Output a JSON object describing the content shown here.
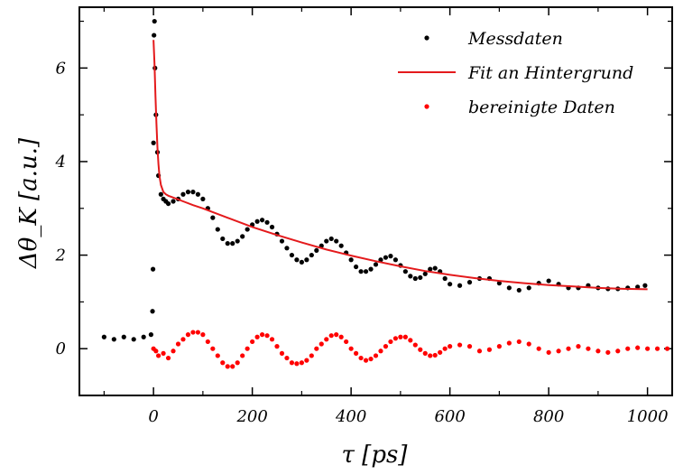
{
  "chart_data": {
    "type": "scatter",
    "xlabel": "τ [ps]",
    "ylabel": "Δθ_K [a.u.]",
    "xlim": [
      -150,
      1050
    ],
    "ylim": [
      -1.0,
      7.3
    ],
    "x_ticks": [
      0,
      200,
      400,
      600,
      800,
      1000
    ],
    "y_ticks": [
      0,
      2,
      4,
      6
    ],
    "grid": false,
    "legend_position": "top-right",
    "series": [
      {
        "name": "Messdaten",
        "kind": "scatter",
        "color": "#000000",
        "x": [
          -100,
          -80,
          -60,
          -40,
          -20,
          -5,
          -2,
          -1,
          0,
          1,
          2,
          3,
          5,
          8,
          10,
          15,
          20,
          25,
          30,
          40,
          50,
          60,
          70,
          80,
          90,
          100,
          110,
          120,
          130,
          140,
          150,
          160,
          170,
          180,
          190,
          200,
          210,
          220,
          230,
          240,
          250,
          260,
          270,
          280,
          290,
          300,
          310,
          320,
          330,
          340,
          350,
          360,
          370,
          380,
          390,
          400,
          410,
          420,
          430,
          440,
          450,
          460,
          470,
          480,
          490,
          500,
          510,
          520,
          530,
          540,
          550,
          560,
          570,
          580,
          590,
          600,
          620,
          640,
          660,
          680,
          700,
          720,
          740,
          760,
          780,
          800,
          820,
          840,
          860,
          880,
          900,
          920,
          940,
          960,
          980,
          995
        ],
        "y": [
          0.25,
          0.2,
          0.25,
          0.2,
          0.25,
          0.3,
          0.8,
          1.7,
          4.4,
          6.7,
          7.0,
          6.0,
          5.0,
          4.2,
          3.7,
          3.3,
          3.2,
          3.15,
          3.1,
          3.15,
          3.2,
          3.3,
          3.35,
          3.35,
          3.3,
          3.2,
          3.0,
          2.8,
          2.55,
          2.35,
          2.25,
          2.25,
          2.3,
          2.4,
          2.55,
          2.65,
          2.72,
          2.75,
          2.7,
          2.6,
          2.45,
          2.3,
          2.15,
          2.0,
          1.9,
          1.85,
          1.9,
          2.0,
          2.1,
          2.2,
          2.3,
          2.35,
          2.3,
          2.2,
          2.05,
          1.9,
          1.75,
          1.65,
          1.65,
          1.7,
          1.8,
          1.9,
          1.95,
          1.98,
          1.9,
          1.78,
          1.65,
          1.55,
          1.5,
          1.52,
          1.6,
          1.7,
          1.72,
          1.65,
          1.5,
          1.38,
          1.35,
          1.42,
          1.5,
          1.5,
          1.4,
          1.3,
          1.25,
          1.3,
          1.4,
          1.45,
          1.38,
          1.3,
          1.3,
          1.35,
          1.3,
          1.28,
          1.28,
          1.3,
          1.32,
          1.35
        ]
      },
      {
        "name": "Fit an Hintergrund",
        "kind": "line",
        "color": "#e41a1c",
        "x": [
          0,
          2,
          4,
          6,
          8,
          10,
          12,
          15,
          20,
          25,
          30,
          40,
          60,
          80,
          100,
          150,
          200,
          250,
          300,
          350,
          400,
          450,
          500,
          550,
          600,
          650,
          700,
          750,
          800,
          850,
          900,
          950,
          1000
        ],
        "y": [
          6.6,
          6.1,
          5.4,
          4.8,
          4.3,
          3.95,
          3.7,
          3.5,
          3.35,
          3.3,
          3.27,
          3.23,
          3.15,
          3.07,
          3.0,
          2.8,
          2.6,
          2.43,
          2.27,
          2.12,
          1.99,
          1.87,
          1.76,
          1.66,
          1.58,
          1.51,
          1.45,
          1.4,
          1.36,
          1.33,
          1.3,
          1.28,
          1.27
        ]
      },
      {
        "name": "bereinigte Daten",
        "kind": "scatter",
        "color": "#ff0000",
        "x": [
          0,
          5,
          10,
          20,
          30,
          40,
          50,
          60,
          70,
          80,
          90,
          100,
          110,
          120,
          130,
          140,
          150,
          160,
          170,
          180,
          190,
          200,
          210,
          220,
          230,
          240,
          250,
          260,
          270,
          280,
          290,
          300,
          310,
          320,
          330,
          340,
          350,
          360,
          370,
          380,
          390,
          400,
          410,
          420,
          430,
          440,
          450,
          460,
          470,
          480,
          490,
          500,
          510,
          520,
          530,
          540,
          550,
          560,
          570,
          580,
          590,
          600,
          620,
          640,
          660,
          680,
          700,
          720,
          740,
          760,
          780,
          800,
          820,
          840,
          860,
          880,
          900,
          920,
          940,
          960,
          980,
          1000,
          1020,
          1040
        ],
        "y": [
          0.0,
          -0.05,
          -0.15,
          -0.1,
          -0.2,
          -0.05,
          0.1,
          0.2,
          0.3,
          0.35,
          0.35,
          0.3,
          0.15,
          0.0,
          -0.15,
          -0.3,
          -0.38,
          -0.38,
          -0.3,
          -0.15,
          0.0,
          0.15,
          0.25,
          0.3,
          0.28,
          0.2,
          0.05,
          -0.1,
          -0.2,
          -0.3,
          -0.32,
          -0.3,
          -0.25,
          -0.15,
          0.0,
          0.1,
          0.2,
          0.28,
          0.3,
          0.25,
          0.15,
          0.0,
          -0.1,
          -0.2,
          -0.25,
          -0.22,
          -0.15,
          -0.05,
          0.05,
          0.15,
          0.22,
          0.25,
          0.25,
          0.18,
          0.08,
          -0.02,
          -0.1,
          -0.15,
          -0.14,
          -0.08,
          0.0,
          0.05,
          0.08,
          0.05,
          -0.05,
          -0.02,
          0.05,
          0.12,
          0.15,
          0.1,
          0.0,
          -0.08,
          -0.05,
          0.0,
          0.05,
          0.0,
          -0.05,
          -0.08,
          -0.05,
          0.0,
          0.02,
          0.0,
          0.0,
          0.0
        ]
      }
    ]
  }
}
